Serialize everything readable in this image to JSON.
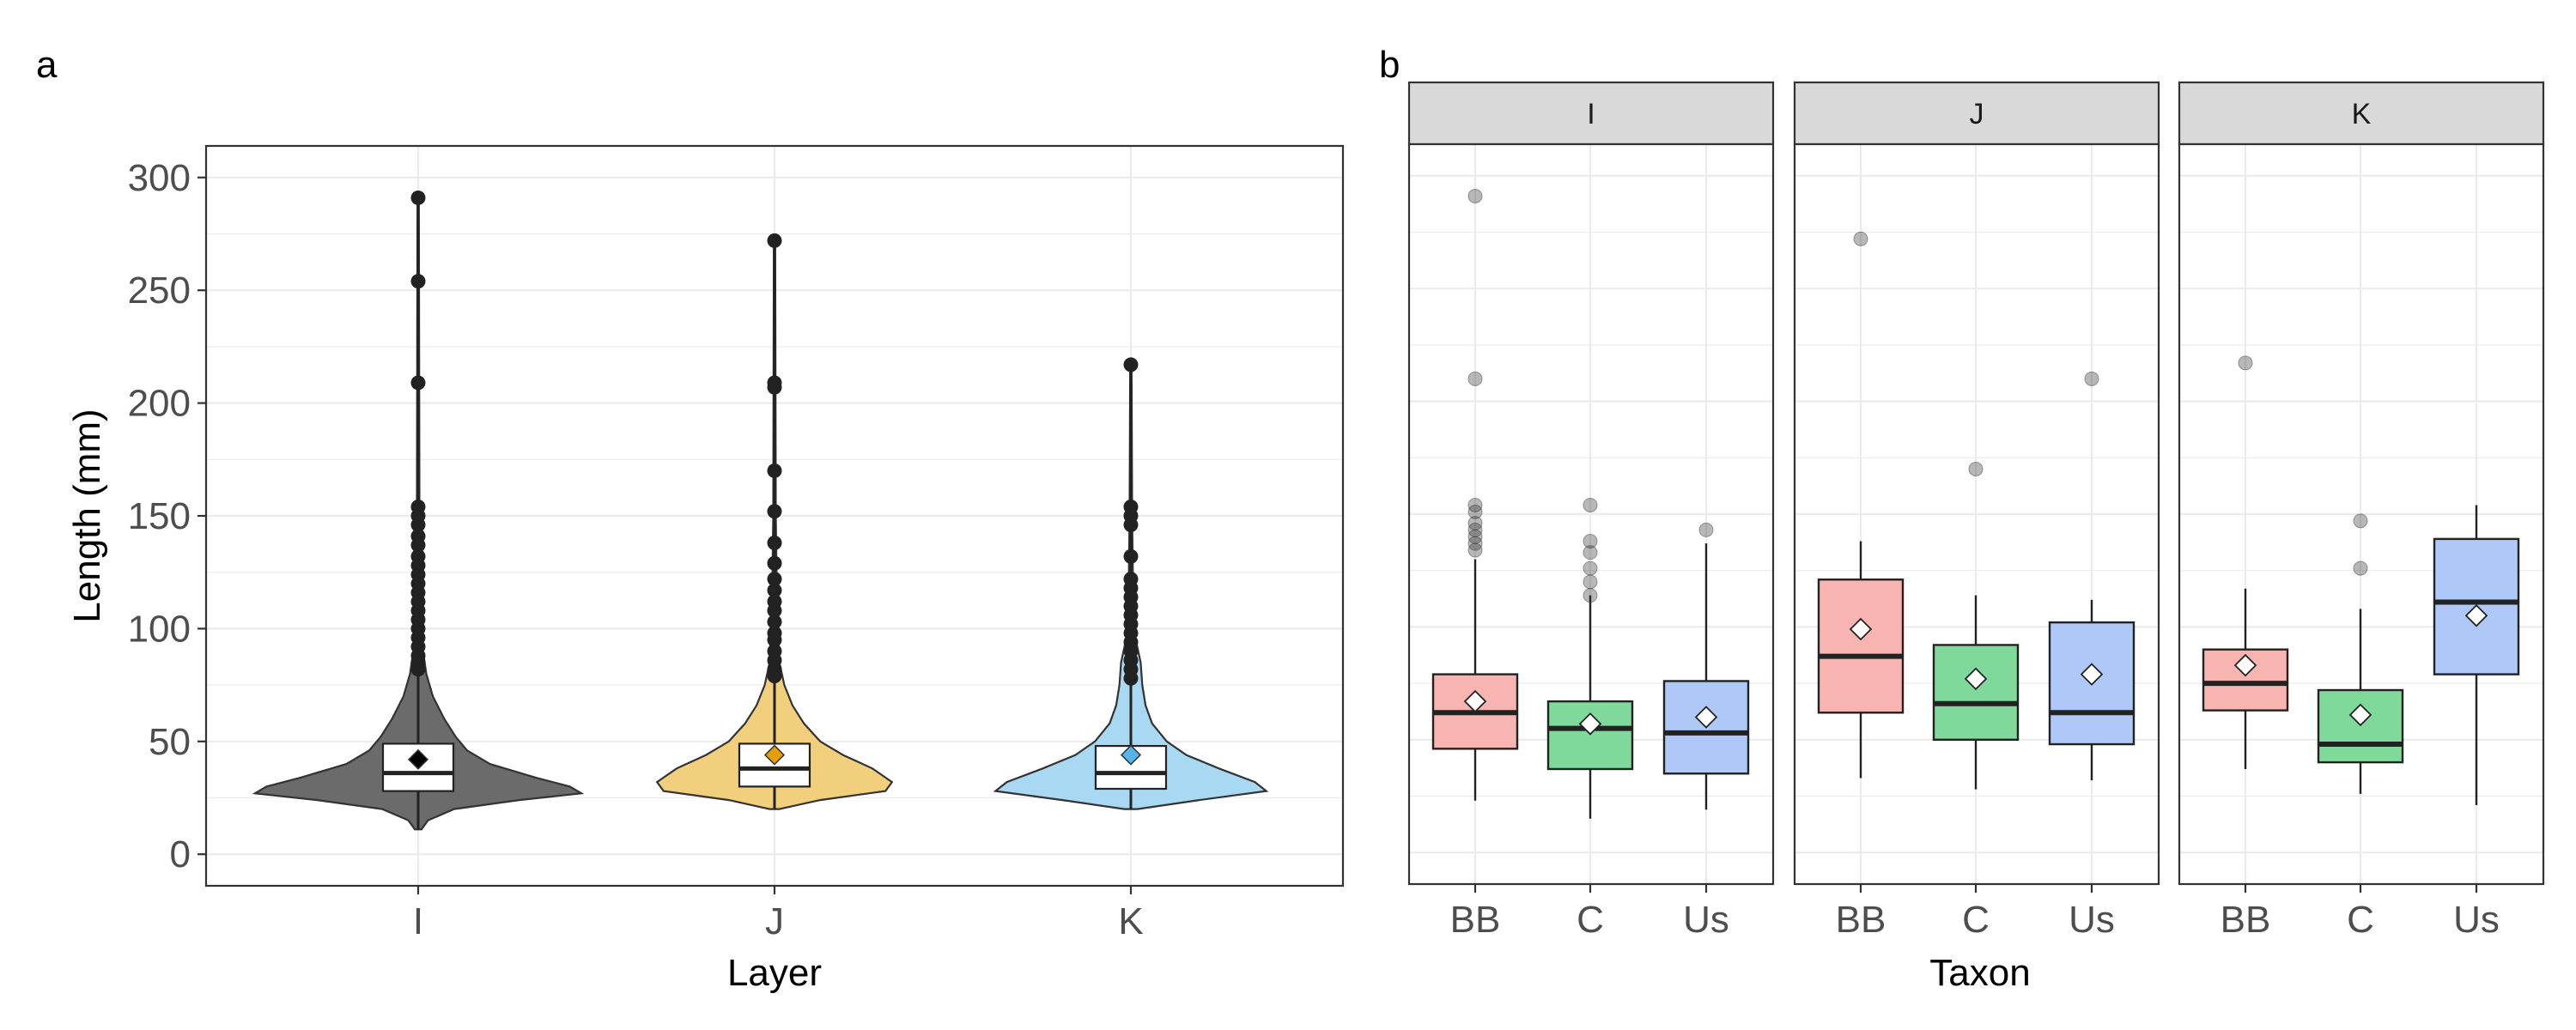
{
  "panels": {
    "a": "a",
    "b": "b"
  },
  "chart_data": [
    {
      "panel": "a",
      "type": "violin",
      "xlabel": "Layer",
      "ylabel": "Length (mm)",
      "ylim": [
        -14,
        314
      ],
      "yticks": [
        0,
        50,
        100,
        150,
        200,
        250,
        300
      ],
      "grid": true,
      "categories": [
        "I",
        "J",
        "K"
      ],
      "colors": {
        "I": "#6b6b6b",
        "J": "#f1cf7d",
        "K": "#a9d9f2"
      },
      "mean_marker_colors": {
        "I": "#000000",
        "J": "#e69f00",
        "K": "#56b4e9"
      },
      "groups": [
        {
          "name": "I",
          "min": 11,
          "q1": 28,
          "median": 36,
          "q3": 49,
          "mean": 42,
          "whisker_low": 11,
          "whisker_high": 291,
          "violin": [
            [
              11,
              0.02
            ],
            [
              15,
              0.06
            ],
            [
              20,
              0.22
            ],
            [
              24,
              0.62
            ],
            [
              27,
              1.0
            ],
            [
              30,
              0.93
            ],
            [
              34,
              0.72
            ],
            [
              40,
              0.44
            ],
            [
              46,
              0.3
            ],
            [
              52,
              0.23
            ],
            [
              60,
              0.16
            ],
            [
              70,
              0.09
            ],
            [
              80,
              0.05
            ],
            [
              90,
              0.03
            ],
            [
              110,
              0.015
            ],
            [
              150,
              0.008
            ],
            [
              291,
              0.004
            ]
          ],
          "points": [
            291,
            254,
            209,
            154,
            150,
            146,
            141,
            137,
            132,
            128,
            124,
            120,
            116,
            112,
            108,
            104,
            100,
            96,
            92,
            88,
            85,
            82
          ]
        },
        {
          "name": "J",
          "min": 20,
          "q1": 30,
          "median": 38,
          "q3": 49,
          "mean": 44,
          "whisker_low": 20,
          "whisker_high": 272,
          "violin": [
            [
              20,
              0.03
            ],
            [
              24,
              0.28
            ],
            [
              28,
              0.68
            ],
            [
              32,
              0.72
            ],
            [
              38,
              0.6
            ],
            [
              44,
              0.42
            ],
            [
              50,
              0.28
            ],
            [
              58,
              0.18
            ],
            [
              66,
              0.11
            ],
            [
              75,
              0.06
            ],
            [
              85,
              0.03
            ],
            [
              110,
              0.015
            ],
            [
              150,
              0.008
            ],
            [
              272,
              0.004
            ]
          ],
          "points": [
            272,
            209,
            207,
            170,
            152,
            138,
            129,
            122,
            117,
            112,
            108,
            103,
            98,
            95,
            90,
            86,
            82,
            79
          ]
        },
        {
          "name": "K",
          "min": 20,
          "q1": 29,
          "median": 36,
          "q3": 48,
          "mean": 44,
          "whisker_low": 20,
          "whisker_high": 217,
          "violin": [
            [
              20,
              0.04
            ],
            [
              24,
              0.42
            ],
            [
              28,
              0.83
            ],
            [
              32,
              0.76
            ],
            [
              38,
              0.54
            ],
            [
              44,
              0.34
            ],
            [
              50,
              0.22
            ],
            [
              58,
              0.13
            ],
            [
              66,
              0.09
            ],
            [
              75,
              0.07
            ],
            [
              85,
              0.06
            ],
            [
              95,
              0.03
            ],
            [
              110,
              0.015
            ],
            [
              150,
              0.008
            ],
            [
              217,
              0.004
            ]
          ],
          "points": [
            217,
            154,
            150,
            146,
            132,
            122,
            118,
            114,
            110,
            106,
            102,
            98,
            94,
            90,
            86,
            82,
            78
          ]
        }
      ]
    },
    {
      "panel": "b",
      "type": "boxplot",
      "xlabel": "Taxon",
      "ylabel": "",
      "ylim": [
        -14,
        314
      ],
      "grid": true,
      "facets": [
        "I",
        "J",
        "K"
      ],
      "categories": [
        "BB",
        "C",
        "Us"
      ],
      "colors": {
        "BB": "#f8b4b0",
        "C": "#7fd99a",
        "Us": "#aec8f7"
      },
      "series": [
        {
          "facet": "I",
          "taxon": "BB",
          "whisker_low": 23,
          "q1": 46,
          "median": 62,
          "q3": 79,
          "whisker_high": 130,
          "mean": 67,
          "outliers": [
            291,
            210,
            154,
            151,
            146,
            143,
            140,
            137,
            134
          ]
        },
        {
          "facet": "I",
          "taxon": "C",
          "whisker_low": 15,
          "q1": 37,
          "median": 55,
          "q3": 67,
          "whisker_high": 114,
          "mean": 57,
          "outliers": [
            154,
            138,
            133,
            126,
            120,
            114
          ]
        },
        {
          "facet": "I",
          "taxon": "Us",
          "whisker_low": 19,
          "q1": 35,
          "median": 53,
          "q3": 76,
          "whisker_high": 137,
          "mean": 60,
          "outliers": [
            143
          ]
        },
        {
          "facet": "J",
          "taxon": "BB",
          "whisker_low": 33,
          "q1": 62,
          "median": 87,
          "q3": 121,
          "whisker_high": 138,
          "mean": 99,
          "outliers": [
            272
          ]
        },
        {
          "facet": "J",
          "taxon": "C",
          "whisker_low": 28,
          "q1": 50,
          "median": 66,
          "q3": 92,
          "whisker_high": 114,
          "mean": 77,
          "outliers": [
            170
          ]
        },
        {
          "facet": "J",
          "taxon": "Us",
          "whisker_low": 32,
          "q1": 48,
          "median": 62,
          "q3": 102,
          "whisker_high": 112,
          "mean": 79,
          "outliers": [
            210
          ]
        },
        {
          "facet": "K",
          "taxon": "BB",
          "whisker_low": 37,
          "q1": 63,
          "median": 75,
          "q3": 90,
          "whisker_high": 117,
          "mean": 83,
          "outliers": [
            217
          ]
        },
        {
          "facet": "K",
          "taxon": "C",
          "whisker_low": 26,
          "q1": 40,
          "median": 48,
          "q3": 72,
          "whisker_high": 108,
          "mean": 61,
          "outliers": [
            147,
            126
          ]
        },
        {
          "facet": "K",
          "taxon": "Us",
          "whisker_low": 21,
          "q1": 79,
          "median": 111,
          "q3": 139,
          "whisker_high": 154,
          "mean": 105,
          "outliers": []
        }
      ]
    }
  ]
}
